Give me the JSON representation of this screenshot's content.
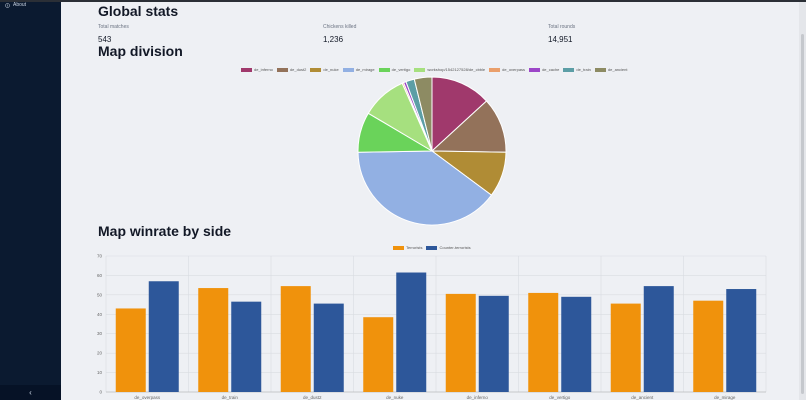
{
  "sidebar": {
    "about_label": "About",
    "collapse_label": "‹"
  },
  "global_stats": {
    "title": "Global stats",
    "items": [
      {
        "label": "Total matches",
        "value": "543"
      },
      {
        "label": "Chickens killed",
        "value": "1,236"
      },
      {
        "label": "Total rounds",
        "value": "14,951"
      }
    ]
  },
  "map_division": {
    "title": "Map division"
  },
  "map_winrate": {
    "title": "Map winrate by side"
  },
  "colors": {
    "terrorists": "#f0920c",
    "counter_terrorists": "#2d579a"
  },
  "chart_data": [
    {
      "type": "pie",
      "labels": [
        "de_inferno",
        "de_dust2",
        "de_nuke",
        "de_mirage",
        "de_vertigo",
        "workshop/1542127528/de_cbble",
        "de_overpass",
        "de_cache",
        "de_train",
        "de_ancient"
      ],
      "values": [
        12,
        11,
        9,
        36,
        8,
        9,
        0.3,
        0.5,
        1.7,
        3.5
      ],
      "colors": [
        "#a0396c",
        "#93725a",
        "#b08c35",
        "#92b0e3",
        "#6ad35a",
        "#a6e07f",
        "#ea9f6b",
        "#9c46c8",
        "#5c9ea6",
        "#8d8b63"
      ],
      "legend": "top"
    },
    {
      "type": "bar",
      "categories": [
        "de_overpass",
        "de_train",
        "de_dust2",
        "de_nuke",
        "de_inferno",
        "de_vertigo",
        "de_ancient",
        "de_mirage"
      ],
      "series": [
        {
          "name": "Terrorists",
          "values": [
            43,
            53.5,
            54.5,
            38.5,
            50.5,
            51,
            45.5,
            47
          ]
        },
        {
          "name": "Counter-terrorists",
          "values": [
            57,
            46.5,
            45.5,
            61.5,
            49.5,
            49,
            54.5,
            53
          ]
        }
      ],
      "ylim": [
        0,
        70
      ],
      "yticks": [
        0,
        10,
        20,
        30,
        40,
        50,
        60,
        70
      ],
      "grid": true,
      "legend": "top"
    }
  ]
}
